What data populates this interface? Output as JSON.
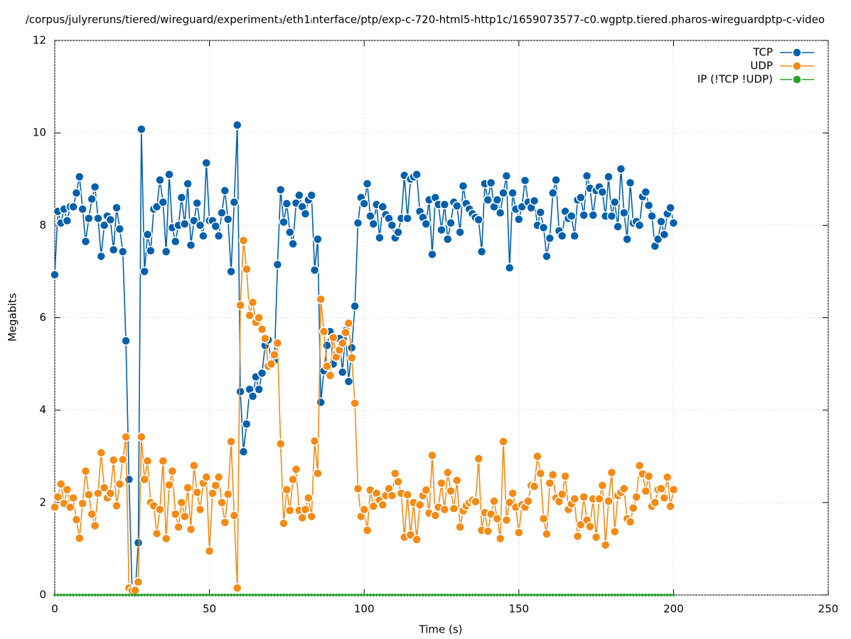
{
  "chart_data": {
    "type": "line",
    "title": "/corpus/julyreruns/tiered/wireguard/experiment₃/eth1ᵢnterface/ptp/exp-c-720-html5-http1c/1659073577-c0.wgptp.tiered.pharos-wireguardptp-c-video",
    "x_label": "Time (s)",
    "y_label": "Megabits",
    "xlim": [
      0,
      250
    ],
    "xticks": [
      0,
      50,
      100,
      150,
      200,
      250
    ],
    "ylim": [
      0,
      12
    ],
    "yticks": [
      0,
      2,
      4,
      6,
      8,
      10,
      12
    ],
    "grid": true,
    "legend": "top-right",
    "x": [
      0,
      1,
      2,
      3,
      4,
      5,
      6,
      7,
      8,
      9,
      10,
      11,
      12,
      13,
      14,
      15,
      16,
      17,
      18,
      19,
      20,
      21,
      22,
      23,
      24,
      25,
      26,
      27,
      28,
      29,
      30,
      31,
      32,
      33,
      34,
      35,
      36,
      37,
      38,
      39,
      40,
      41,
      42,
      43,
      44,
      45,
      46,
      47,
      48,
      49,
      50,
      51,
      52,
      53,
      54,
      55,
      56,
      57,
      58,
      59,
      60,
      61,
      62,
      63,
      64,
      65,
      66,
      67,
      68,
      69,
      70,
      71,
      72,
      73,
      74,
      75,
      76,
      77,
      78,
      79,
      80,
      81,
      82,
      83,
      84,
      85,
      86,
      87,
      88,
      89,
      90,
      91,
      92,
      93,
      94,
      95,
      96,
      97,
      98,
      99,
      100,
      101,
      102,
      103,
      104,
      105,
      106,
      107,
      108,
      109,
      110,
      111,
      112,
      113,
      114,
      115,
      116,
      117,
      118,
      119,
      120,
      121,
      122,
      123,
      124,
      125,
      126,
      127,
      128,
      129,
      130,
      131,
      132,
      133,
      134,
      135,
      136,
      137,
      138,
      139,
      140,
      141,
      142,
      143,
      144,
      145,
      146,
      147,
      148,
      149,
      150,
      151,
      152,
      153,
      154,
      155,
      156,
      157,
      158,
      159,
      160,
      161,
      162,
      163,
      164,
      165,
      166,
      167,
      168,
      169,
      170,
      171,
      172,
      173,
      174,
      175,
      176,
      177,
      178,
      179,
      180,
      181,
      182,
      183,
      184,
      185,
      186,
      187,
      188,
      189,
      190,
      191,
      192,
      193,
      194,
      195,
      196,
      197,
      198,
      199,
      200
    ],
    "series": [
      {
        "name": "TCP",
        "color": "#0060ad",
        "values": [
          6.93,
          8.3,
          8.05,
          8.35,
          8.1,
          8.4,
          8.4,
          8.7,
          9.05,
          8.35,
          7.65,
          8.15,
          8.57,
          8.83,
          8.15,
          7.33,
          8.0,
          8.2,
          8.12,
          7.47,
          8.38,
          7.92,
          7.43,
          5.5,
          2.5,
          0.1,
          0.05,
          1.13,
          10.08,
          7.0,
          7.8,
          7.45,
          8.35,
          8.4,
          8.98,
          8.5,
          7.43,
          9.1,
          7.95,
          7.65,
          8.0,
          8.6,
          8.03,
          8.9,
          7.57,
          8.1,
          8.48,
          8.0,
          7.77,
          9.35,
          8.1,
          8.1,
          7.98,
          7.77,
          8.27,
          8.75,
          8.13,
          7.0,
          8.5,
          10.17,
          4.4,
          3.1,
          3.7,
          4.45,
          4.3,
          4.72,
          4.45,
          4.8,
          5.4,
          5.52,
          5.0,
          5.08,
          7.15,
          8.77,
          8.07,
          8.47,
          7.85,
          7.6,
          8.48,
          8.65,
          8.4,
          8.25,
          8.55,
          8.65,
          7.03,
          7.7,
          4.17,
          4.85,
          5.4,
          5.7,
          5.0,
          5.2,
          5.55,
          4.82,
          5.72,
          4.62,
          5.35,
          6.25,
          8.05,
          8.6,
          8.47,
          8.9,
          8.2,
          8.03,
          8.45,
          7.73,
          8.4,
          8.23,
          8.15,
          8.0,
          7.73,
          7.85,
          8.15,
          9.08,
          8.15,
          9.0,
          9.05,
          9.1,
          8.3,
          8.17,
          8.03,
          8.55,
          7.37,
          8.6,
          8.45,
          7.9,
          8.45,
          7.7,
          8.05,
          8.5,
          8.42,
          7.85,
          8.85,
          8.47,
          8.35,
          8.25,
          8.17,
          8.12,
          7.43,
          8.9,
          8.55,
          8.92,
          8.4,
          8.55,
          8.27,
          8.7,
          9.07,
          7.08,
          8.7,
          8.35,
          8.13,
          8.4,
          8.97,
          8.5,
          8.38,
          8.53,
          8.0,
          8.28,
          7.95,
          7.33,
          7.72,
          8.7,
          8.98,
          7.88,
          7.77,
          8.3,
          8.15,
          8.2,
          7.77,
          8.55,
          8.6,
          8.22,
          9.07,
          8.8,
          8.22,
          8.75,
          8.83,
          8.72,
          8.2,
          9.05,
          8.2,
          8.5,
          7.97,
          9.22,
          8.27,
          7.7,
          8.92,
          8.05,
          8.08,
          8.0,
          8.62,
          8.72,
          8.43,
          8.2,
          7.55,
          7.7,
          8.08,
          7.8,
          8.25,
          8.38,
          8.05
        ]
      },
      {
        "name": "UDP",
        "color": "#f58a14",
        "values": [
          1.9,
          2.12,
          2.4,
          1.98,
          2.28,
          1.9,
          2.1,
          1.63,
          1.23,
          1.98,
          2.68,
          2.17,
          1.75,
          1.5,
          2.2,
          3.08,
          2.32,
          2.1,
          2.2,
          2.92,
          1.93,
          2.4,
          2.93,
          3.42,
          0.15,
          0.1,
          0.1,
          0.28,
          3.42,
          2.5,
          2.9,
          2.0,
          1.93,
          1.33,
          1.85,
          2.9,
          1.22,
          2.38,
          2.68,
          1.75,
          1.47,
          2.0,
          1.7,
          2.32,
          1.42,
          2.8,
          2.22,
          1.85,
          2.42,
          2.55,
          0.95,
          2.2,
          2.37,
          2.55,
          2.0,
          1.57,
          2.18,
          3.32,
          1.72,
          0.15,
          6.27,
          7.67,
          7.05,
          6.05,
          6.33,
          5.9,
          6.0,
          5.75,
          5.55,
          4.95,
          5.0,
          5.2,
          5.45,
          3.27,
          1.55,
          2.28,
          1.83,
          2.5,
          2.72,
          1.83,
          1.67,
          1.85,
          2.1,
          1.7,
          3.33,
          2.63,
          6.4,
          5.7,
          4.95,
          4.75,
          5.57,
          5.15,
          5.3,
          5.45,
          5.68,
          5.88,
          5.13,
          4.15,
          2.3,
          1.7,
          1.85,
          1.4,
          2.27,
          1.92,
          2.2,
          2.05,
          1.95,
          2.15,
          2.3,
          2.15,
          2.63,
          2.45,
          2.2,
          1.25,
          2.17,
          1.3,
          2.0,
          1.2,
          1.95,
          2.15,
          2.27,
          1.77,
          3.02,
          1.72,
          1.9,
          2.42,
          1.85,
          2.65,
          2.25,
          1.87,
          2.48,
          1.47,
          1.82,
          1.93,
          2.0,
          2.05,
          2.02,
          2.95,
          1.4,
          1.78,
          1.38,
          1.75,
          2.03,
          1.65,
          1.22,
          3.32,
          1.62,
          2.0,
          2.2,
          1.9,
          1.35,
          1.95,
          1.9,
          2.03,
          2.37,
          2.35,
          3.0,
          2.63,
          1.65,
          1.32,
          2.42,
          2.6,
          2.1,
          2.02,
          2.18,
          2.57,
          1.85,
          1.97,
          2.08,
          1.27,
          1.52,
          2.12,
          1.62,
          1.48,
          2.08,
          1.25,
          2.08,
          2.37,
          1.08,
          2.03,
          2.65,
          1.37,
          2.15,
          2.22,
          2.3,
          1.65,
          1.58,
          1.88,
          2.12,
          2.8,
          2.62,
          2.25,
          2.57,
          1.92,
          2.0,
          2.28,
          2.3,
          2.1,
          2.55,
          1.92,
          2.28
        ]
      },
      {
        "name": "IP (!TCP  !UDP)",
        "color": "#2ca02c",
        "values": [
          0,
          0,
          0,
          0,
          0,
          0,
          0,
          0,
          0,
          0,
          0,
          0,
          0,
          0,
          0,
          0,
          0,
          0,
          0,
          0,
          0,
          0,
          0,
          0,
          0,
          0,
          0,
          0,
          0,
          0,
          0,
          0,
          0,
          0,
          0,
          0,
          0,
          0,
          0,
          0,
          0,
          0,
          0,
          0,
          0,
          0,
          0,
          0,
          0,
          0,
          0,
          0,
          0,
          0,
          0,
          0,
          0,
          0,
          0,
          0,
          0,
          0,
          0,
          0,
          0,
          0,
          0,
          0,
          0,
          0,
          0,
          0,
          0,
          0,
          0,
          0,
          0,
          0,
          0,
          0,
          0,
          0,
          0,
          0,
          0,
          0,
          0,
          0,
          0,
          0,
          0,
          0,
          0,
          0,
          0,
          0,
          0,
          0,
          0,
          0,
          0,
          0,
          0,
          0,
          0,
          0,
          0,
          0,
          0,
          0,
          0,
          0,
          0,
          0,
          0,
          0,
          0,
          0,
          0,
          0,
          0,
          0,
          0,
          0,
          0,
          0,
          0,
          0,
          0,
          0,
          0,
          0,
          0,
          0,
          0,
          0,
          0,
          0,
          0,
          0,
          0,
          0,
          0,
          0,
          0,
          0,
          0,
          0,
          0,
          0,
          0,
          0,
          0,
          0,
          0,
          0,
          0,
          0,
          0,
          0,
          0,
          0,
          0,
          0,
          0,
          0,
          0,
          0,
          0,
          0,
          0,
          0,
          0,
          0,
          0,
          0,
          0,
          0,
          0,
          0,
          0,
          0,
          0,
          0,
          0,
          0,
          0,
          0,
          0,
          0,
          0,
          0,
          0,
          0,
          0,
          0,
          0,
          0,
          0,
          0,
          0
        ]
      }
    ]
  }
}
